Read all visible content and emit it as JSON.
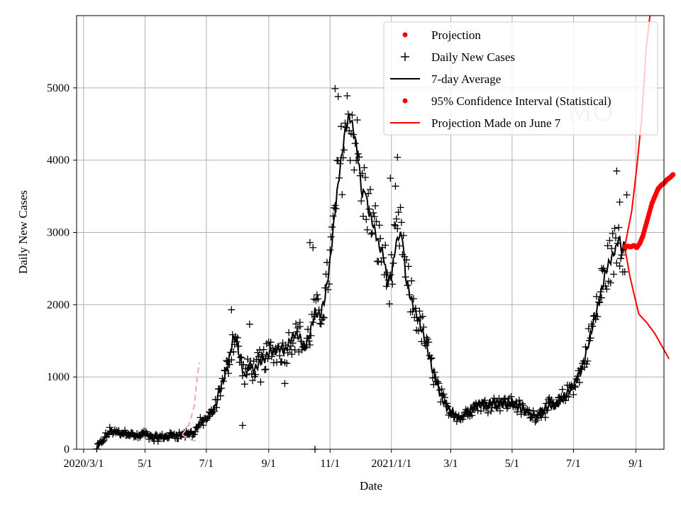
{
  "chart_data": {
    "type": "line",
    "title": "",
    "xlabel": "Date",
    "ylabel": "Daily New Cases",
    "grid": true,
    "legend_position": "top-right",
    "watermark": "MO",
    "x_start": "2020-03-01",
    "xlim_days": [
      -7,
      577
    ],
    "ylim": [
      0,
      6000
    ],
    "y_ticks": [
      0,
      1000,
      2000,
      3000,
      4000,
      5000
    ],
    "x_ticks": [
      {
        "day": 0,
        "label": "2020/3/1"
      },
      {
        "day": 61,
        "label": "5/1"
      },
      {
        "day": 122,
        "label": "7/1"
      },
      {
        "day": 184,
        "label": "9/1"
      },
      {
        "day": 245,
        "label": "11/1"
      },
      {
        "day": 306,
        "label": "2021/1/1"
      },
      {
        "day": 365,
        "label": "3/1"
      },
      {
        "day": 426,
        "label": "5/1"
      },
      {
        "day": 487,
        "label": "7/1"
      },
      {
        "day": 549,
        "label": "9/1"
      }
    ],
    "legend": [
      {
        "key": "projection",
        "label": "Projection",
        "marker": "dot",
        "color": "#ff0000"
      },
      {
        "key": "daily",
        "label": "Daily New Cases",
        "marker": "plus",
        "color": "#000000"
      },
      {
        "key": "avg",
        "label": "7-day Average",
        "marker": "line",
        "color": "#000000"
      },
      {
        "key": "ci",
        "label": "95% Confidence Interval (Statistical)",
        "marker": "dot",
        "color": "#ff0000"
      },
      {
        "key": "june7",
        "label": "Projection Made on June 7",
        "marker": "line",
        "color": "#ff0000"
      }
    ],
    "avg_anchors": [
      [
        13,
        20
      ],
      [
        18,
        100
      ],
      [
        22,
        180
      ],
      [
        27,
        260
      ],
      [
        33,
        230
      ],
      [
        38,
        220
      ],
      [
        43,
        240
      ],
      [
        48,
        200
      ],
      [
        55,
        170
      ],
      [
        60,
        220
      ],
      [
        65,
        180
      ],
      [
        70,
        150
      ],
      [
        80,
        170
      ],
      [
        90,
        200
      ],
      [
        100,
        200
      ],
      [
        110,
        230
      ],
      [
        115,
        350
      ],
      [
        120,
        400
      ],
      [
        125,
        450
      ],
      [
        130,
        550
      ],
      [
        135,
        800
      ],
      [
        140,
        1000
      ],
      [
        144,
        1200
      ],
      [
        148,
        1500
      ],
      [
        151,
        1550
      ],
      [
        155,
        1300
      ],
      [
        160,
        1000
      ],
      [
        165,
        1150
      ],
      [
        170,
        1100
      ],
      [
        175,
        1200
      ],
      [
        180,
        1250
      ],
      [
        185,
        1350
      ],
      [
        190,
        1350
      ],
      [
        195,
        1400
      ],
      [
        200,
        1350
      ],
      [
        205,
        1500
      ],
      [
        210,
        1600
      ],
      [
        215,
        1550
      ],
      [
        220,
        1400
      ],
      [
        225,
        1600
      ],
      [
        230,
        1900
      ],
      [
        235,
        1850
      ],
      [
        240,
        2100
      ],
      [
        245,
        2600
      ],
      [
        250,
        3300
      ],
      [
        255,
        3900
      ],
      [
        260,
        4400
      ],
      [
        264,
        4600
      ],
      [
        266,
        4550
      ],
      [
        270,
        4300
      ],
      [
        274,
        3900
      ],
      [
        277,
        3500
      ],
      [
        280,
        3600
      ],
      [
        283,
        3300
      ],
      [
        286,
        3200
      ],
      [
        290,
        3000
      ],
      [
        294,
        2800
      ],
      [
        298,
        2700
      ],
      [
        302,
        2300
      ],
      [
        306,
        2400
      ],
      [
        310,
        2800
      ],
      [
        313,
        2950
      ],
      [
        317,
        2950
      ],
      [
        320,
        2400
      ],
      [
        325,
        2100
      ],
      [
        330,
        1900
      ],
      [
        335,
        1700
      ],
      [
        340,
        1500
      ],
      [
        345,
        1200
      ],
      [
        350,
        950
      ],
      [
        355,
        750
      ],
      [
        360,
        600
      ],
      [
        365,
        520
      ],
      [
        370,
        480
      ],
      [
        375,
        430
      ],
      [
        380,
        500
      ],
      [
        385,
        550
      ],
      [
        390,
        600
      ],
      [
        395,
        620
      ],
      [
        400,
        600
      ],
      [
        405,
        650
      ],
      [
        410,
        640
      ],
      [
        415,
        650
      ],
      [
        420,
        630
      ],
      [
        425,
        650
      ],
      [
        430,
        620
      ],
      [
        435,
        560
      ],
      [
        440,
        520
      ],
      [
        445,
        480
      ],
      [
        450,
        470
      ],
      [
        455,
        520
      ],
      [
        460,
        560
      ],
      [
        465,
        620
      ],
      [
        470,
        600
      ],
      [
        475,
        700
      ],
      [
        480,
        760
      ],
      [
        485,
        850
      ],
      [
        490,
        950
      ],
      [
        495,
        1100
      ],
      [
        500,
        1350
      ],
      [
        505,
        1650
      ],
      [
        510,
        1900
      ],
      [
        515,
        2200
      ],
      [
        520,
        2500
      ],
      [
        525,
        2650
      ],
      [
        530,
        2800
      ],
      [
        532,
        2950
      ],
      [
        535,
        2750
      ],
      [
        538,
        2850
      ]
    ],
    "scatter_amp": 0.14,
    "scatter_outliers": [
      [
        158,
        330
      ],
      [
        230,
        0
      ],
      [
        250,
        4990
      ],
      [
        253,
        4880
      ],
      [
        312,
        4040
      ],
      [
        225,
        2860
      ],
      [
        228,
        2790
      ],
      [
        176,
        930
      ],
      [
        310,
        3640
      ],
      [
        305,
        3750
      ],
      [
        530,
        3850
      ],
      [
        540,
        3520
      ],
      [
        533,
        3420
      ],
      [
        147,
        1930
      ],
      [
        165,
        1730
      ],
      [
        200,
        910
      ],
      [
        215,
        1700
      ],
      [
        515,
        2500
      ]
    ],
    "projection_points": [
      [
        538,
        2800
      ],
      [
        541,
        2810
      ],
      [
        544,
        2800
      ],
      [
        547,
        2820
      ],
      [
        550,
        2790
      ],
      [
        553,
        2850
      ],
      [
        556,
        2950
      ],
      [
        559,
        3100
      ],
      [
        562,
        3250
      ],
      [
        565,
        3400
      ],
      [
        568,
        3500
      ],
      [
        571,
        3600
      ],
      [
        574,
        3650
      ],
      [
        577,
        3680
      ],
      [
        580,
        3730
      ],
      [
        583,
        3760
      ],
      [
        586,
        3800
      ]
    ],
    "ci_upper": [
      [
        538,
        2800
      ],
      [
        545,
        3300
      ],
      [
        550,
        3900
      ],
      [
        555,
        4600
      ],
      [
        559,
        5500
      ],
      [
        563,
        6000
      ]
    ],
    "ci_lower": [
      [
        538,
        2800
      ],
      [
        543,
        2400
      ],
      [
        548,
        2100
      ],
      [
        552,
        1870
      ],
      [
        560,
        1750
      ],
      [
        568,
        1600
      ],
      [
        576,
        1400
      ],
      [
        582,
        1250
      ]
    ],
    "june7_projection": [
      [
        98,
        200
      ],
      [
        105,
        350
      ],
      [
        110,
        600
      ],
      [
        113,
        1000
      ],
      [
        115,
        1200
      ]
    ],
    "june7_lower": [
      [
        98,
        200
      ],
      [
        104,
        140
      ],
      [
        110,
        120
      ],
      [
        115,
        100
      ]
    ]
  }
}
